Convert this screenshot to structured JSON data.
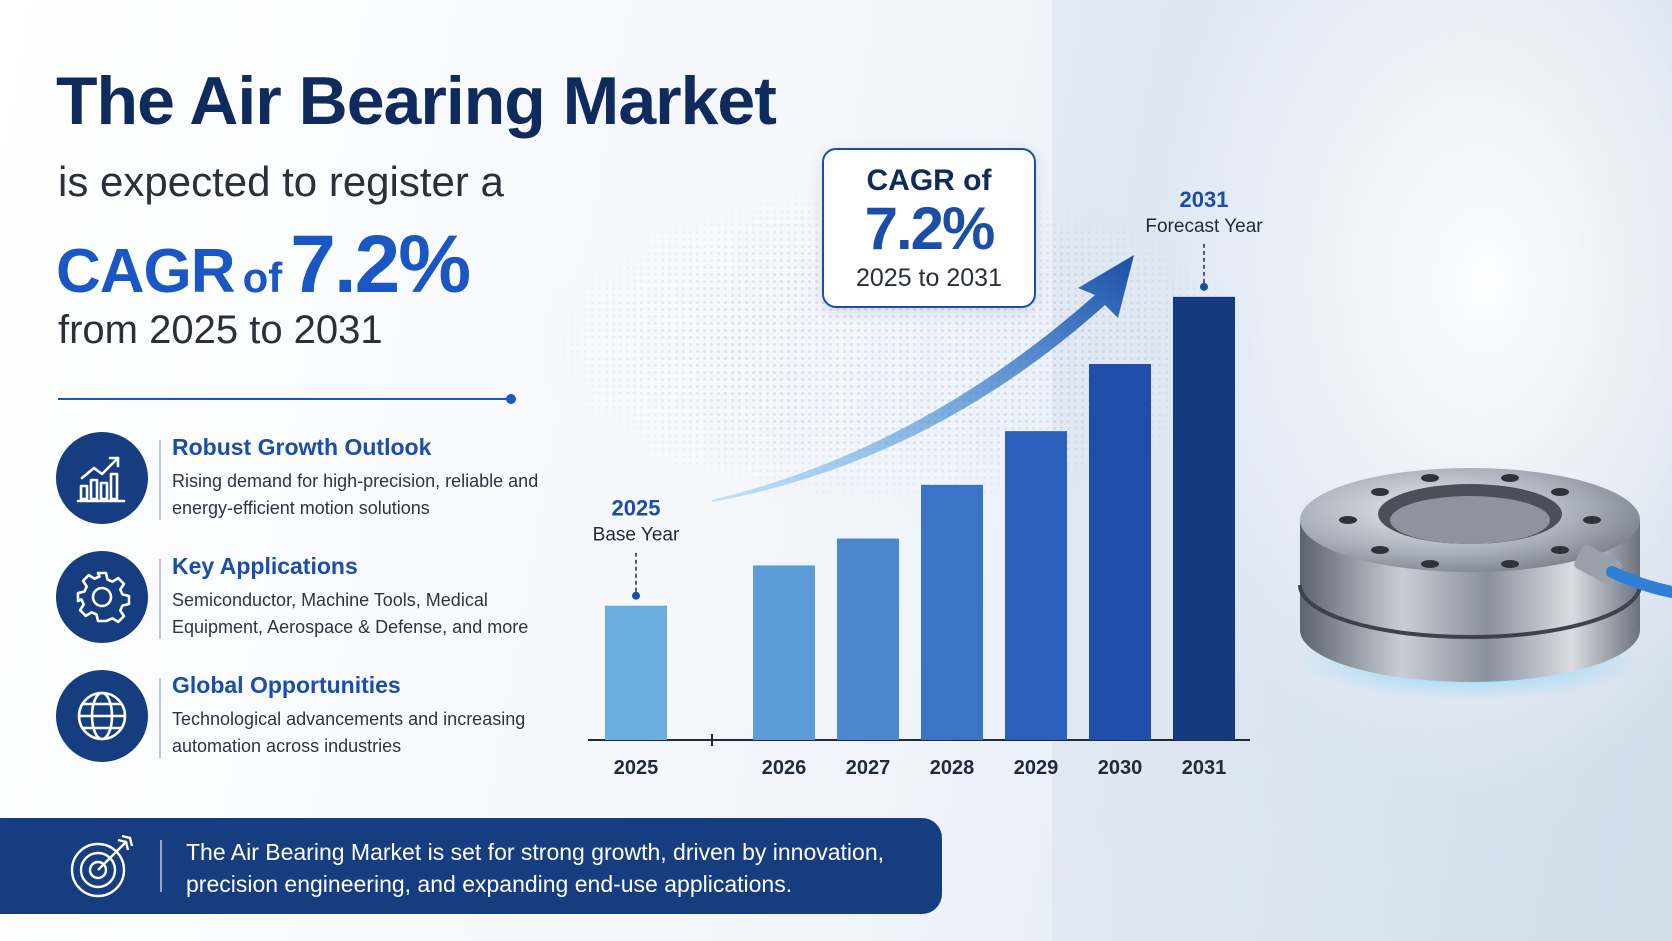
{
  "headline": {
    "title": "The Air Bearing Market",
    "line1": "is expected to register a",
    "cagr_label": "CAGR",
    "cagr_of": "of",
    "cagr_value": "7.2%",
    "line3": "from 2025 to 2031"
  },
  "features": [
    {
      "title": "Robust Growth Outlook",
      "description": "Rising demand for high-precision, reliable and energy-efficient motion solutions",
      "icon": "growth-chart-icon"
    },
    {
      "title": "Key Applications",
      "description": "Semiconductor, Machine Tools, Medical Equipment, Aerospace & Defense, and more",
      "icon": "gear-icon"
    },
    {
      "title": "Global Opportunities",
      "description": "Technological advancements and increasing automation across industries",
      "icon": "globe-icon"
    }
  ],
  "cagr_box": {
    "label": "CAGR of",
    "value": "7.2%",
    "range": "2025 to 2031"
  },
  "bottom_banner": {
    "text": "The Air Bearing Market is set for strong growth, driven by innovation, precision engineering, and expanding end-use applications.",
    "icon": "target-icon"
  },
  "colors": {
    "navy": "#0f2a5c",
    "accent": "#1a56c4",
    "banner": "#163d80"
  },
  "chart_data": {
    "type": "bar",
    "categories": [
      "2025",
      "2026",
      "2027",
      "2028",
      "2029",
      "2030",
      "2031"
    ],
    "values": [
      1.0,
      1.3,
      1.5,
      1.9,
      2.3,
      2.8,
      3.3
    ],
    "ylim": [
      0,
      3.5
    ],
    "title": "",
    "xlabel": "",
    "ylabel": "",
    "grid": false,
    "axis_break_after": "2025",
    "callouts": [
      {
        "category": "2025",
        "year": "2025",
        "label": "Base Year"
      },
      {
        "category": "2031",
        "year": "2031",
        "label": "Forecast Year"
      }
    ],
    "bar_colors": [
      "#6aaee0",
      "#5b9bd8",
      "#4a87cf",
      "#3a74c6",
      "#2a5fbb",
      "#1f4fab",
      "#143a80"
    ]
  }
}
